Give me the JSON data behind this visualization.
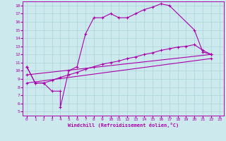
{
  "xlabel": "Windchill (Refroidissement éolien,°C)",
  "bg_color": "#cce9ee",
  "grid_color": "#aad4da",
  "line_color": "#aa00aa",
  "xlim": [
    -0.5,
    23.5
  ],
  "ylim": [
    4.5,
    18.5
  ],
  "xticks": [
    0,
    1,
    2,
    3,
    4,
    5,
    6,
    7,
    8,
    9,
    10,
    11,
    12,
    13,
    14,
    15,
    16,
    17,
    18,
    19,
    20,
    21,
    22,
    23
  ],
  "yticks": [
    5,
    6,
    7,
    8,
    9,
    10,
    11,
    12,
    13,
    14,
    15,
    16,
    17,
    18
  ],
  "line1_x": [
    0,
    1,
    2,
    3,
    4,
    4,
    5,
    6,
    7,
    8,
    9,
    10,
    11,
    12,
    13,
    14,
    15,
    16,
    17,
    20,
    21,
    22
  ],
  "line1_y": [
    10.5,
    8.5,
    8.5,
    7.5,
    7.5,
    5.5,
    10,
    10.5,
    14.5,
    16.5,
    16.5,
    17,
    16.5,
    16.5,
    17,
    17.5,
    17.8,
    18.2,
    18,
    15,
    12.3,
    12
  ],
  "line2_x": [
    0,
    1,
    2,
    3,
    4,
    5,
    6,
    7,
    8,
    9,
    10,
    11,
    12,
    13,
    14,
    15,
    16,
    17,
    18,
    19,
    20,
    21,
    22
  ],
  "line2_y": [
    10.5,
    8.5,
    8.5,
    8.8,
    9.2,
    9.5,
    9.8,
    10.2,
    10.5,
    10.8,
    11.0,
    11.2,
    11.5,
    11.7,
    12.0,
    12.2,
    12.5,
    12.7,
    12.9,
    13.0,
    13.2,
    12.5,
    12.0
  ],
  "line3_x": [
    0,
    22
  ],
  "line3_y": [
    9.5,
    12.0
  ],
  "line4_x": [
    0,
    22
  ],
  "line4_y": [
    8.5,
    11.5
  ]
}
